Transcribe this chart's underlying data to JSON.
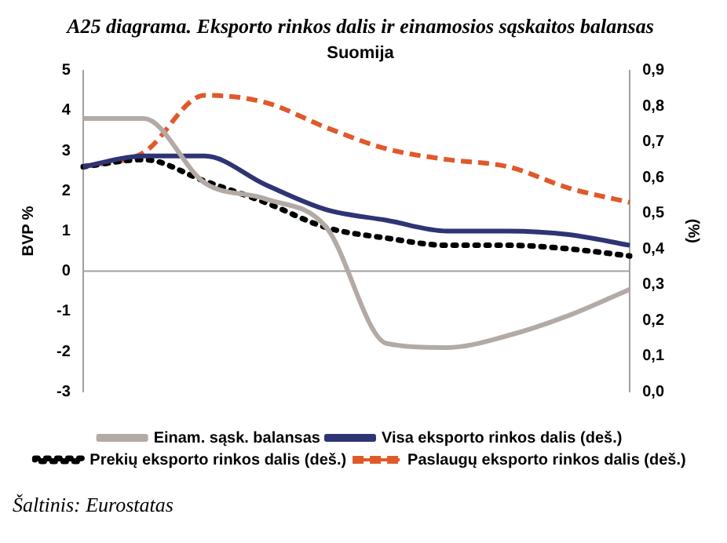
{
  "chart_data": {
    "type": "line",
    "title": "A25 diagrama. Eksporto rinkos dalis ir einamosios sąskaitos balansas",
    "subtitle": "Suomija",
    "ylabel": "BVP %",
    "y2label": "(%)",
    "categories": [
      null,
      null,
      null,
      null,
      null,
      null,
      null,
      null,
      null,
      null
    ],
    "series": [
      {
        "name": "Einam. sąsk. balansas",
        "color": "#b3aaa5",
        "line_style": "solid",
        "values": [
          3.8,
          3.8,
          2.2,
          1.8,
          1.1,
          -1.8,
          -1.9,
          -1.6,
          -1.1,
          -0.45
        ]
      },
      {
        "name": "Visa eksporto rinkos dalis (deš.)",
        "color": "#2e3474",
        "line_style": "solid",
        "axis": "y2",
        "values": [
          0.63,
          0.66,
          0.66,
          0.58,
          0.51,
          0.48,
          0.45,
          0.45,
          0.44,
          0.41
        ]
      },
      {
        "name": "Prekių eksporto rinkos dalis (deš.)",
        "color": "#000000",
        "line_style": "dotted",
        "axis": "y2",
        "values": [
          0.63,
          0.65,
          0.59,
          0.53,
          0.46,
          0.43,
          0.41,
          0.41,
          0.4,
          0.38
        ]
      },
      {
        "name": "Paslaugų eksporto rinkos dalis (deš.)",
        "color": "#e0592a",
        "line_style": "dashed",
        "axis": "y2",
        "values": [
          0.63,
          0.67,
          0.83,
          0.81,
          0.74,
          0.68,
          0.65,
          0.63,
          0.57,
          0.53
        ]
      }
    ],
    "ylim": [
      -3,
      5
    ],
    "yticks": [
      -3,
      -2,
      -1,
      0,
      1,
      2,
      3,
      4,
      5
    ],
    "y2lim": [
      0,
      0.9
    ],
    "y2ticks": [
      {
        "value": 0,
        "label": "0,0"
      },
      {
        "value": 0.1,
        "label": "0,1"
      },
      {
        "value": 0.2,
        "label": "0,2"
      },
      {
        "value": 0.3,
        "label": "0,3"
      },
      {
        "value": 0.4,
        "label": "0,4"
      },
      {
        "value": 0.5,
        "label": "0,5"
      },
      {
        "value": 0.6,
        "label": "0,6"
      },
      {
        "value": 0.7,
        "label": "0,7"
      },
      {
        "value": 0.8,
        "label": "0,8"
      },
      {
        "value": 0.9,
        "label": "0,9"
      }
    ],
    "ref_lines": [
      {
        "axis": "y",
        "value": 0,
        "color": "#a0a0a0"
      }
    ],
    "grid": false,
    "legend": "bottom",
    "marker": "none",
    "annotations": [
      "Šaltinis: Eurostatas"
    ]
  }
}
